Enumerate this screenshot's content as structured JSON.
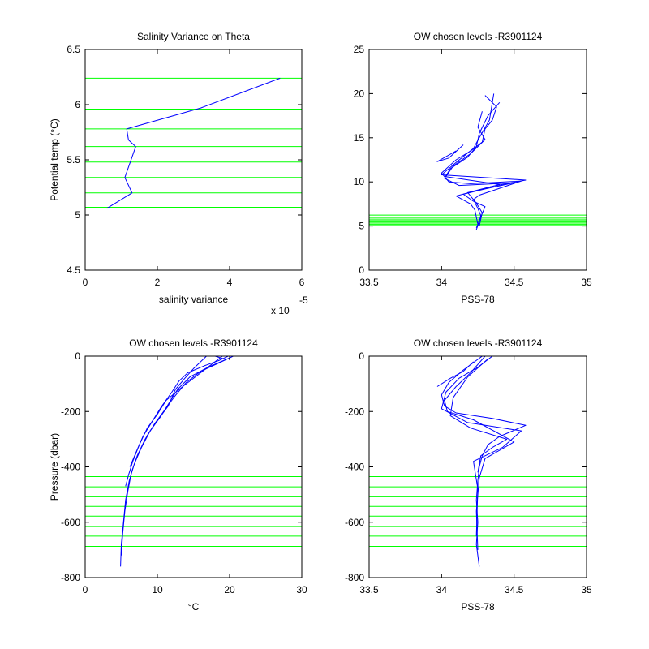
{
  "chart_data": [
    {
      "type": "line",
      "title": "Salinity Variance on Theta",
      "xlabel": "salinity variance",
      "ylabel": "Potential temp (°C)",
      "x_multiplier_base": "x 10",
      "x_multiplier_exp": "-5",
      "xlim": [
        0,
        6
      ],
      "ylim": [
        4.5,
        6.5
      ],
      "xticks": [
        "0",
        "2",
        "4",
        "6"
      ],
      "yticks": [
        "4.5",
        "5",
        "5.5",
        "6",
        "6.5"
      ],
      "series": [
        {
          "color": "#0000ff",
          "x": [
            0.6,
            1.3,
            1.1,
            1.4,
            1.2,
            1.15,
            3.2,
            5.4
          ],
          "y": [
            5.06,
            5.2,
            5.34,
            5.62,
            5.68,
            5.78,
            5.97,
            6.24
          ]
        }
      ],
      "hlines": {
        "color": "#00ff00",
        "y": [
          5.07,
          5.2,
          5.34,
          5.48,
          5.62,
          5.78,
          5.96,
          6.24
        ]
      }
    },
    {
      "type": "line",
      "title": "OW chosen levels -R3901124",
      "xlabel": "PSS-78",
      "ylabel": "",
      "xlim": [
        33.5,
        35
      ],
      "ylim": [
        0,
        25
      ],
      "xticks": [
        "33.5",
        "34",
        "34.5",
        "35"
      ],
      "yticks": [
        "0",
        "5",
        "10",
        "15",
        "20",
        "25"
      ],
      "series": [
        {
          "color": "#0000ff",
          "x": [
            34.24,
            34.26,
            34.27,
            34.25,
            34.22,
            34.26,
            34.35,
            34.55,
            34.2,
            34.05,
            34.0,
            34.1,
            34.2,
            34.28,
            34.3,
            34.35,
            34.38,
            34.3
          ],
          "y": [
            4.6,
            5.5,
            6.2,
            7.0,
            8.0,
            8.5,
            9.0,
            10.1,
            9.8,
            10.0,
            11.0,
            12.5,
            13.5,
            14.5,
            16.0,
            17.0,
            18.5,
            19.8
          ]
        },
        {
          "color": "#0000ff",
          "x": [
            34.24,
            34.27,
            34.3,
            34.22,
            34.15,
            34.3,
            34.5,
            34.12,
            34.02,
            34.06,
            34.18,
            34.24,
            34.26,
            34.32,
            34.4
          ],
          "y": [
            4.8,
            6.0,
            7.2,
            7.8,
            8.6,
            9.2,
            9.9,
            9.6,
            10.4,
            11.5,
            12.8,
            14.0,
            15.5,
            17.5,
            19.0
          ]
        },
        {
          "color": "#0000ff",
          "x": [
            34.25,
            34.23,
            34.2,
            34.1,
            34.35,
            34.58,
            34.0,
            34.1,
            34.22,
            34.26,
            34.33,
            34.36
          ],
          "y": [
            5.2,
            6.8,
            7.5,
            8.4,
            9.5,
            10.2,
            10.8,
            12.2,
            13.8,
            15.0,
            17.0,
            20.0
          ]
        },
        {
          "color": "#0000ff",
          "x": [
            34.26,
            34.28,
            34.24,
            34.18,
            34.4,
            34.03,
            34.08,
            34.2,
            34.3,
            34.25,
            34.28
          ],
          "y": [
            5.0,
            6.5,
            7.6,
            8.8,
            9.7,
            10.6,
            11.8,
            13.2,
            14.8,
            16.2,
            18.0
          ]
        },
        {
          "color": "#0000ff",
          "x": [
            34.1,
            33.97,
            34.05,
            34.15
          ],
          "y": [
            13.5,
            12.3,
            12.7,
            14.2
          ]
        }
      ],
      "hlines": {
        "color": "#00ff00",
        "y": [
          5.07,
          5.2,
          5.34,
          5.48,
          5.62,
          5.78,
          5.96,
          6.24
        ]
      }
    },
    {
      "type": "line",
      "title": "OW chosen levels -R3901124",
      "xlabel": "°C",
      "ylabel": "Pressure (dbar)",
      "xlim": [
        0,
        30
      ],
      "ylim": [
        -800,
        0
      ],
      "xticks": [
        "0",
        "10",
        "20",
        "30"
      ],
      "yticks": [
        "-800",
        "-600",
        "-400",
        "-200",
        "0"
      ],
      "series": [
        {
          "color": "#0000ff",
          "x": [
            4.9,
            5.0,
            5.3,
            5.6,
            6.1,
            6.8,
            7.8,
            9.0,
            10.4,
            11.6,
            12.8,
            14.5,
            17.0,
            19.5,
            18.0
          ],
          "y": [
            -760,
            -680,
            -600,
            -520,
            -450,
            -390,
            -330,
            -270,
            -220,
            -170,
            -120,
            -75,
            -40,
            -12,
            0
          ]
        },
        {
          "color": "#0000ff",
          "x": [
            5.0,
            5.2,
            5.5,
            5.9,
            6.4,
            7.2,
            8.3,
            9.6,
            11.0,
            12.4,
            14.0,
            16.0,
            18.5,
            20.5
          ],
          "y": [
            -720,
            -640,
            -560,
            -490,
            -420,
            -360,
            -300,
            -245,
            -195,
            -145,
            -95,
            -55,
            -25,
            0
          ]
        },
        {
          "color": "#0000ff",
          "x": [
            5.6,
            6.0,
            6.6,
            7.5,
            8.6,
            10.0,
            11.2,
            13.5,
            15.5,
            17.5,
            19.0
          ],
          "y": [
            -470,
            -430,
            -380,
            -320,
            -260,
            -210,
            -160,
            -110,
            -70,
            -30,
            0
          ]
        },
        {
          "color": "#0000ff",
          "x": [
            6.2,
            7.0,
            8.0,
            9.3,
            10.5,
            12.0,
            13.0,
            14.2,
            16.5,
            18.6,
            19.8
          ],
          "y": [
            -400,
            -350,
            -290,
            -235,
            -185,
            -130,
            -90,
            -60,
            -35,
            -15,
            0
          ]
        },
        {
          "color": "#0000ff",
          "x": [
            8.5,
            9.8,
            11.5,
            12.5,
            13.8,
            15.0,
            16.8
          ],
          "y": [
            -290,
            -240,
            -180,
            -120,
            -80,
            -45,
            0
          ]
        }
      ],
      "hlines": {
        "color": "#00ff00",
        "y": [
          -435,
          -472,
          -508,
          -543,
          -578,
          -615,
          -650,
          -687
        ]
      }
    },
    {
      "type": "line",
      "title": "OW chosen levels -R3901124",
      "xlabel": "PSS-78",
      "ylabel": "",
      "xlim": [
        33.5,
        35
      ],
      "ylim": [
        -800,
        0
      ],
      "xticks": [
        "33.5",
        "34",
        "34.5",
        "35"
      ],
      "yticks": [
        "-800",
        "-600",
        "-400",
        "-200",
        "0"
      ],
      "series": [
        {
          "color": "#0000ff",
          "x": [
            34.26,
            34.24,
            34.25,
            34.24,
            34.25,
            34.26,
            34.28,
            34.32,
            34.4,
            34.58,
            34.35,
            34.1,
            34.02,
            34.0,
            34.05,
            34.15,
            34.28
          ],
          "y": [
            -760,
            -680,
            -600,
            -520,
            -450,
            -400,
            -360,
            -320,
            -290,
            -250,
            -225,
            -205,
            -180,
            -140,
            -95,
            -50,
            0
          ]
        },
        {
          "color": "#0000ff",
          "x": [
            34.25,
            34.24,
            34.26,
            34.3,
            34.5,
            34.22,
            34.04,
            34.02,
            34.1,
            34.2,
            34.3
          ],
          "y": [
            -700,
            -560,
            -440,
            -370,
            -310,
            -230,
            -200,
            -160,
            -110,
            -60,
            0
          ]
        },
        {
          "color": "#0000ff",
          "x": [
            34.24,
            34.25,
            34.22,
            34.42,
            34.55,
            34.18,
            34.0,
            34.03,
            34.12,
            34.25,
            34.35
          ],
          "y": [
            -650,
            -480,
            -380,
            -330,
            -270,
            -240,
            -190,
            -130,
            -80,
            -40,
            0
          ]
        },
        {
          "color": "#0000ff",
          "x": [
            34.25,
            34.27,
            34.35,
            34.45,
            34.2,
            34.06,
            34.08,
            34.18,
            34.32
          ],
          "y": [
            -420,
            -360,
            -330,
            -300,
            -260,
            -215,
            -150,
            -75,
            -10
          ]
        },
        {
          "color": "#0000ff",
          "x": [
            33.97,
            34.06,
            34.15,
            34.22
          ],
          "y": [
            -110,
            -80,
            -55,
            -20
          ]
        }
      ],
      "hlines": {
        "color": "#00ff00",
        "y": [
          -435,
          -472,
          -508,
          -543,
          -578,
          -615,
          -650,
          -687
        ]
      }
    }
  ]
}
